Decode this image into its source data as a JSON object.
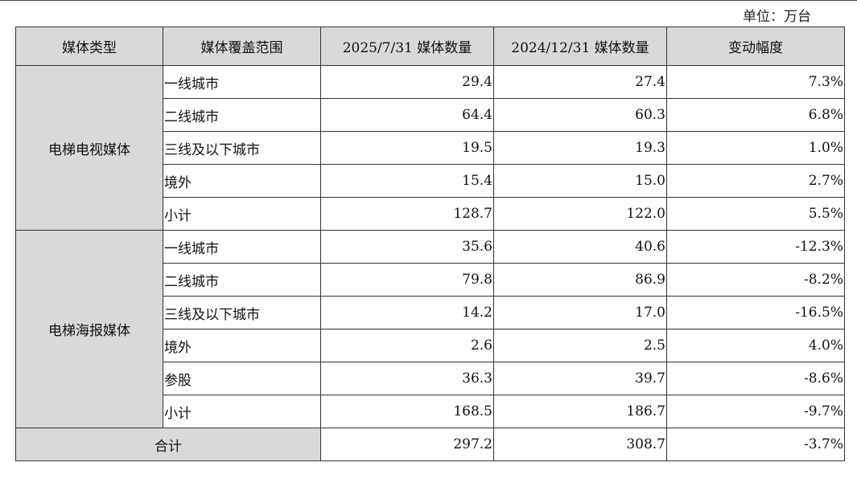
{
  "unit_label": "单位：万台",
  "headers": [
    "媒体类型",
    "媒体覆盖范围",
    "2025/7/31 媒体数量",
    "2024/12/31 媒体数量",
    "变动幅度"
  ],
  "groups": [
    {
      "type": "电梯电视媒体",
      "rows": [
        {
          "scope": "一线城市",
          "v2025": "29.4",
          "v2024": "27.4",
          "change": "7.3%"
        },
        {
          "scope": "二线城市",
          "v2025": "64.4",
          "v2024": "60.3",
          "change": "6.8%"
        },
        {
          "scope": "三线及以下城市",
          "v2025": "19.5",
          "v2024": "19.3",
          "change": "1.0%"
        },
        {
          "scope": "境外",
          "v2025": "15.4",
          "v2024": "15.0",
          "change": "2.7%"
        },
        {
          "scope": "小计",
          "v2025": "128.7",
          "v2024": "122.0",
          "change": "5.5%"
        }
      ]
    },
    {
      "type": "电梯海报媒体",
      "rows": [
        {
          "scope": "一线城市",
          "v2025": "35.6",
          "v2024": "40.6",
          "change": "-12.3%"
        },
        {
          "scope": "二线城市",
          "v2025": "79.8",
          "v2024": "86.9",
          "change": "-8.2%"
        },
        {
          "scope": "三线及以下城市",
          "v2025": "14.2",
          "v2024": "17.0",
          "change": "-16.5%"
        },
        {
          "scope": "境外",
          "v2025": "2.6",
          "v2024": "2.5",
          "change": "4.0%"
        },
        {
          "scope": "参股",
          "v2025": "36.3",
          "v2024": "39.7",
          "change": "-8.6%"
        },
        {
          "scope": "小计",
          "v2025": "168.5",
          "v2024": "186.7",
          "change": "-9.7%"
        }
      ]
    }
  ],
  "total": {
    "label": "合计",
    "v2025": "297.2",
    "v2024": "308.7",
    "change": "-3.7%"
  }
}
